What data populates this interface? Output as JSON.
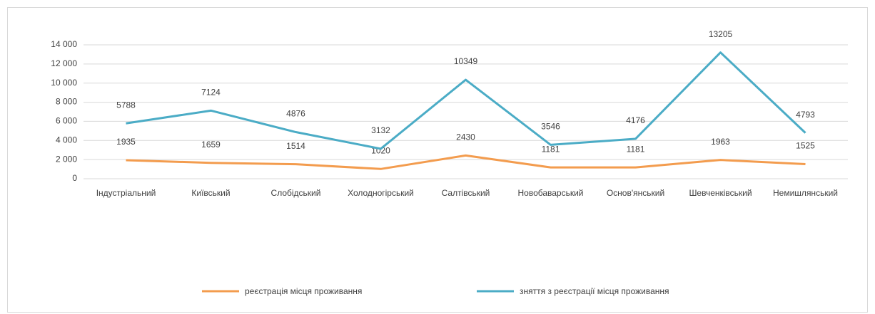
{
  "chart_data": {
    "type": "line",
    "categories": [
      "Індустріальний",
      "Київський",
      "Слобідський",
      "Холодногірський",
      "Салтівський",
      "Новобаварський",
      "Основ'янський",
      "Шевченківський",
      "Немишлянський"
    ],
    "series": [
      {
        "name": "реєстрація місця проживання",
        "color": "#f39c4e",
        "values": [
          1935,
          1659,
          1514,
          1020,
          2430,
          1181,
          1181,
          1963,
          1525
        ]
      },
      {
        "name": "зняття з реєстрації місця проживання",
        "color": "#4bacc6",
        "values": [
          5788,
          7124,
          4876,
          3132,
          10349,
          3546,
          4176,
          13205,
          4793
        ]
      }
    ],
    "ylim": [
      0,
      14000
    ],
    "yticks": [
      0,
      {
        "value": 2000,
        "label": "2 000"
      },
      {
        "value": 4000,
        "label": "4 000"
      },
      {
        "value": 6000,
        "label": "6 000"
      },
      {
        "value": 8000,
        "label": "8 000"
      },
      {
        "value": 10000,
        "label": "10 000"
      },
      {
        "value": 12000,
        "label": "12 000"
      },
      {
        "value": 14000,
        "label": "14 000"
      }
    ],
    "grid": true,
    "legend": "bottom"
  }
}
